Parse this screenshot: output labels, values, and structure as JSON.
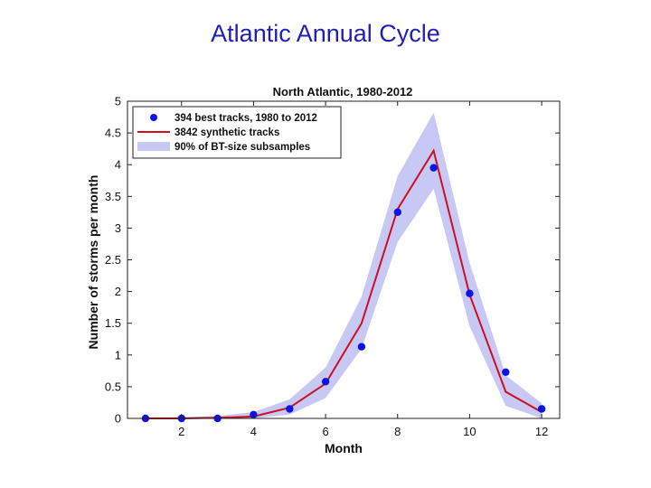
{
  "slide": {
    "title": "Atlantic Annual Cycle"
  },
  "chart_data": {
    "type": "line",
    "title": "North Atlantic, 1980-2012",
    "xlabel": "Month",
    "ylabel": "Number of storms per month",
    "xlim": [
      0.5,
      12.5
    ],
    "ylim": [
      0,
      5
    ],
    "xticks": [
      2,
      4,
      6,
      8,
      10,
      12
    ],
    "yticks": [
      0,
      0.5,
      1,
      1.5,
      2,
      2.5,
      3,
      3.5,
      4,
      4.5,
      5
    ],
    "grid": false,
    "legend_position": "top-left",
    "x": [
      1,
      2,
      3,
      4,
      5,
      6,
      7,
      8,
      9,
      10,
      11,
      12
    ],
    "series": [
      {
        "name": "394 best tracks, 1980 to 2012",
        "kind": "scatter",
        "color": "#0a14e6",
        "values": [
          0.0,
          0.0,
          0.0,
          0.06,
          0.15,
          0.58,
          1.13,
          3.25,
          3.95,
          1.97,
          0.73,
          0.15
        ]
      },
      {
        "name": "3842 synthetic tracks",
        "kind": "line",
        "color": "#cc1020",
        "values": [
          0.0,
          0.0,
          0.01,
          0.03,
          0.17,
          0.55,
          1.5,
          3.3,
          4.22,
          1.95,
          0.42,
          0.1
        ]
      },
      {
        "name": "90% of BT-size subsamples",
        "kind": "band",
        "color": "#c8c8f4",
        "lower": [
          0.0,
          0.0,
          0.0,
          0.0,
          0.06,
          0.32,
          1.1,
          2.78,
          3.62,
          1.45,
          0.2,
          0.0
        ],
        "upper": [
          0.02,
          0.02,
          0.04,
          0.1,
          0.3,
          0.8,
          1.92,
          3.82,
          4.82,
          2.45,
          0.68,
          0.24
        ]
      }
    ]
  }
}
